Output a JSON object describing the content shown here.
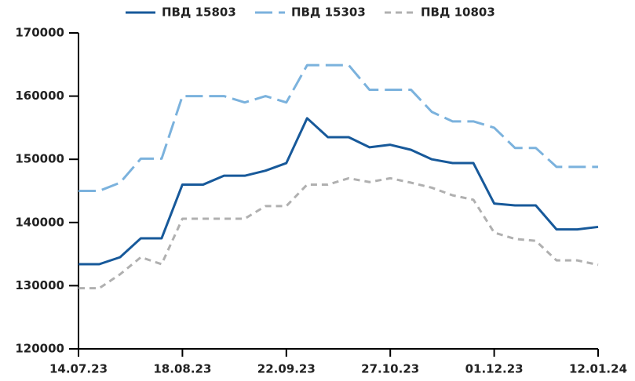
{
  "chart_data": {
    "type": "line",
    "categories": [
      "14.07.23",
      null,
      null,
      null,
      null,
      "18.08.23",
      null,
      null,
      null,
      null,
      "22.09.23",
      null,
      null,
      null,
      null,
      "27.10.23",
      null,
      null,
      null,
      null,
      "01.12.23",
      null,
      null,
      null,
      null,
      "12.01.24"
    ],
    "series": [
      {
        "name": "ПВД 15803",
        "color": "#17599a",
        "values": [
          133400,
          133400,
          134500,
          137500,
          137500,
          146000,
          146000,
          147400,
          147400,
          148200,
          149400,
          156500,
          153500,
          153500,
          151900,
          152300,
          151500,
          150000,
          149400,
          149400,
          143000,
          142700,
          142700,
          138900,
          138900,
          139300
        ]
      },
      {
        "name": "ПВД 15303",
        "color": "#7bb2dd",
        "values": [
          145000,
          145000,
          146300,
          150100,
          150100,
          160000,
          160000,
          160000,
          159000,
          160000,
          159000,
          164900,
          164900,
          164900,
          161000,
          161000,
          161000,
          157500,
          156000,
          156000,
          155000,
          151800,
          151800,
          148800,
          148800,
          148800
        ]
      },
      {
        "name": "ПВД 10803",
        "color": "#b0b0b0",
        "values": [
          129600,
          129600,
          131800,
          134500,
          133400,
          140600,
          140600,
          140600,
          140600,
          142600,
          142600,
          146000,
          146000,
          147000,
          146400,
          147000,
          146300,
          145500,
          144300,
          143600,
          138400,
          137400,
          137100,
          134000,
          134000,
          133300
        ]
      }
    ],
    "ylim": [
      120000,
      170000
    ],
    "yticks": [
      120000,
      130000,
      140000,
      150000,
      160000,
      170000
    ]
  }
}
